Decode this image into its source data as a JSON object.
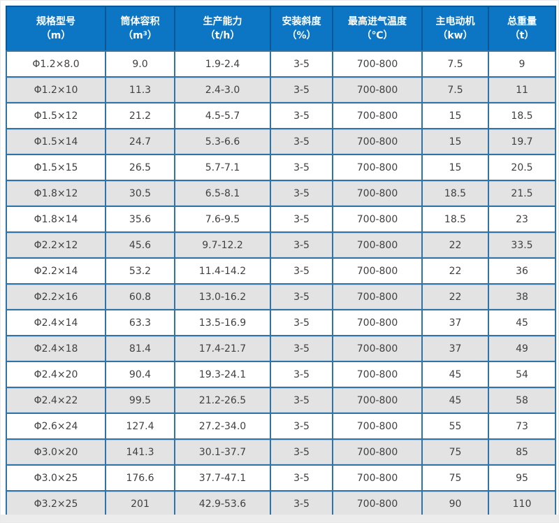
{
  "colors": {
    "header_bg": "#0d76c4",
    "header_text": "#ffffff",
    "header_divider": "#0b5795",
    "border": "#2f74a8",
    "alt_row_bg": "#e3e3e3",
    "text": "#404040",
    "bottom_strip": "#ececec"
  },
  "table": {
    "columns": [
      {
        "title": "规格型号",
        "unit": "（m）"
      },
      {
        "title": "筒体容积",
        "unit": "（m³）"
      },
      {
        "title": "生产能力",
        "unit": "（t/h）"
      },
      {
        "title": "安装斜度",
        "unit": "（%）"
      },
      {
        "title": "最高进气温度",
        "unit": "（℃）"
      },
      {
        "title": "主电动机",
        "unit": "（kw）"
      },
      {
        "title": "总重量",
        "unit": "（t）"
      }
    ],
    "rows": [
      [
        "Φ1.2×8.0",
        "9.0",
        "1.9-2.4",
        "3-5",
        "700-800",
        "7.5",
        "9"
      ],
      [
        "Φ1.2×10",
        "11.3",
        "2.4-3.0",
        "3-5",
        "700-800",
        "7.5",
        "11"
      ],
      [
        "Φ1.5×12",
        "21.2",
        "4.5-5.7",
        "3-5",
        "700-800",
        "15",
        "18.5"
      ],
      [
        "Φ1.5×14",
        "24.7",
        "5.3-6.6",
        "3-5",
        "700-800",
        "15",
        "19.7"
      ],
      [
        "Φ1.5×15",
        "26.5",
        "5.7-7.1",
        "3-5",
        "700-800",
        "15",
        "20.5"
      ],
      [
        "Φ1.8×12",
        "30.5",
        "6.5-8.1",
        "3-5",
        "700-800",
        "18.5",
        "21.5"
      ],
      [
        "Φ1.8×14",
        "35.6",
        "7.6-9.5",
        "3-5",
        "700-800",
        "18.5",
        "23"
      ],
      [
        "Φ2.2×12",
        "45.6",
        "9.7-12.2",
        "3-5",
        "700-800",
        "22",
        "33.5"
      ],
      [
        "Φ2.2×14",
        "53.2",
        "11.4-14.2",
        "3-5",
        "700-800",
        "22",
        "36"
      ],
      [
        "Φ2.2×16",
        "60.8",
        "13.0-16.2",
        "3-5",
        "700-800",
        "22",
        "38"
      ],
      [
        "Φ2.4×14",
        "63.3",
        "13.5-16.9",
        "3-5",
        "700-800",
        "37",
        "45"
      ],
      [
        "Φ2.4×18",
        "81.4",
        "17.4-21.7",
        "3-5",
        "700-800",
        "37",
        "49"
      ],
      [
        "Φ2.4×20",
        "90.4",
        "19.3-24.1",
        "3-5",
        "700-800",
        "45",
        "54"
      ],
      [
        "Φ2.4×22",
        "99.5",
        "21.2-26.5",
        "3-5",
        "700-800",
        "45",
        "58"
      ],
      [
        "Φ2.6×24",
        "127.4",
        "27.2-34.0",
        "3-5",
        "700-800",
        "55",
        "73"
      ],
      [
        "Φ3.0×20",
        "141.3",
        "30.1-37.7",
        "3-5",
        "700-800",
        "75",
        "85"
      ],
      [
        "Φ3.0×25",
        "176.6",
        "37.7-47.1",
        "3-5",
        "700-800",
        "75",
        "95"
      ],
      [
        "Φ3.2×25",
        "201",
        "42.9-53.6",
        "3-5",
        "700-800",
        "90",
        "110"
      ]
    ]
  }
}
